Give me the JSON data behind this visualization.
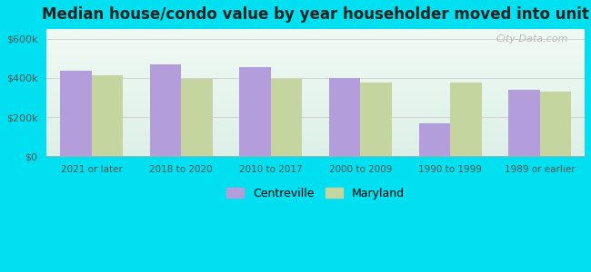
{
  "title": "Median house/condo value by year householder moved into unit",
  "categories": [
    "2021 or later",
    "2018 to 2020",
    "2010 to 2017",
    "2000 to 2009",
    "1990 to 1999",
    "1989 or earlier"
  ],
  "centreville": [
    435000,
    470000,
    455000,
    400000,
    170000,
    340000
  ],
  "maryland": [
    415000,
    395000,
    395000,
    375000,
    375000,
    330000
  ],
  "centreville_color": "#b39ddb",
  "maryland_color": "#c5d5a0",
  "background_outer": "#00e0f0",
  "yticks": [
    0,
    200000,
    400000,
    600000
  ],
  "ytick_labels": [
    "$0",
    "$200k",
    "$400k",
    "$600k"
  ],
  "ylim": [
    0,
    650000
  ],
  "title_fontsize": 12,
  "watermark": "City-Data.com",
  "bar_width": 0.35
}
